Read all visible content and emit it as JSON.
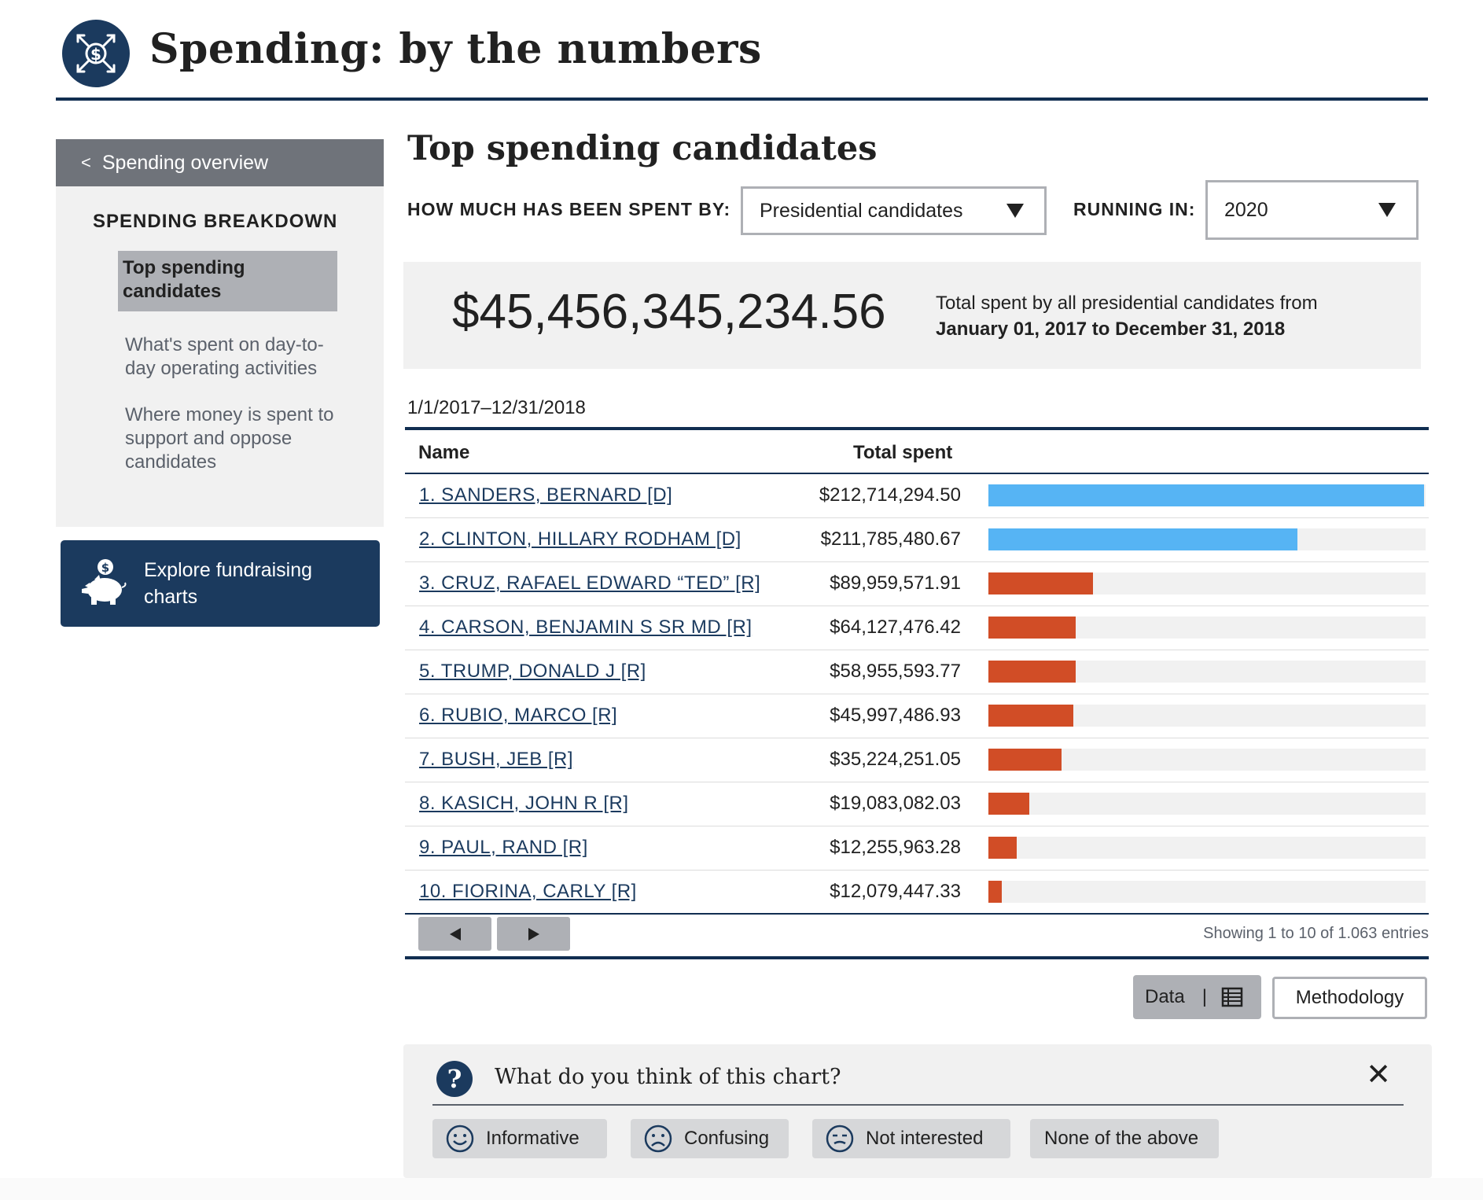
{
  "header": {
    "title": "Spending: by the numbers",
    "logo_icon": "dollar-arrows-icon"
  },
  "sidebar": {
    "back_label": "Spending overview",
    "heading": "SPENDING BREAKDOWN",
    "items": [
      {
        "label": "Top spending candidates",
        "active": true
      },
      {
        "label": "What's spent on day-to-day operating activities",
        "active": false
      },
      {
        "label": "Where money is spent to support and oppose candidates",
        "active": false
      }
    ],
    "explore_label": "Explore fundraising charts"
  },
  "main": {
    "title": "Top spending candidates",
    "filter_spent_by_label": "HOW MUCH HAS BEEN SPENT BY:",
    "filter_spent_by_value": "Presidential candidates",
    "filter_running_label": "RUNNING IN:",
    "filter_running_value": "2020",
    "total_amount": "$45,456,345,234.56",
    "total_desc_line1": "Total spent by all presidential candidates from",
    "total_desc_line2": "January 01, 2017 to December 31, 2018",
    "date_range": "1/1/2017–12/31/2018"
  },
  "table": {
    "col_name": "Name",
    "col_total": "Total spent",
    "rows": [
      {
        "name": "1. SANDERS, BERNARD [D]",
        "total": "$212,714,294.50",
        "party": "D",
        "fill": 1.0
      },
      {
        "name": "2. CLINTON, HILLARY RODHAM [D]",
        "total": "$211,785,480.67",
        "party": "D",
        "fill": 0.71
      },
      {
        "name": "3. CRUZ, RAFAEL EDWARD “TED” [R]",
        "total": "$89,959,571.91",
        "party": "R",
        "fill": 0.24
      },
      {
        "name": "4. CARSON, BENJAMIN S SR MD [R]",
        "total": "$64,127,476.42",
        "party": "R",
        "fill": 0.2
      },
      {
        "name": "5. TRUMP, DONALD J [R]",
        "total": "$58,955,593.77",
        "party": "R",
        "fill": 0.2
      },
      {
        "name": "6. RUBIO, MARCO [R]",
        "total": "$45,997,486.93",
        "party": "R",
        "fill": 0.195
      },
      {
        "name": "7. BUSH, JEB  [R]",
        "total": "$35,224,251.05",
        "party": "R",
        "fill": 0.168
      },
      {
        "name": "8. KASICH, JOHN R [R]",
        "total": "$19,083,082.03",
        "party": "R",
        "fill": 0.093
      },
      {
        "name": "9. PAUL, RAND [R]",
        "total": "$12,255,963.28",
        "party": "R",
        "fill": 0.065
      },
      {
        "name": "10. FIORINA, CARLY [R]",
        "total": "$12,079,447.33",
        "party": "R",
        "fill": 0.03
      }
    ],
    "colors": {
      "D": "#56b4f4",
      "R": "#d14d26"
    },
    "showing": "Showing  1 to 10 of 1.063 entries"
  },
  "actions": {
    "data_label": "Data",
    "data_sep": "|",
    "methodology_label": "Methodology"
  },
  "feedback": {
    "question": "What do you think of this chart?",
    "close": "✕",
    "options": [
      "Informative",
      "Confusing",
      "Not interested",
      "None of the above"
    ]
  }
}
